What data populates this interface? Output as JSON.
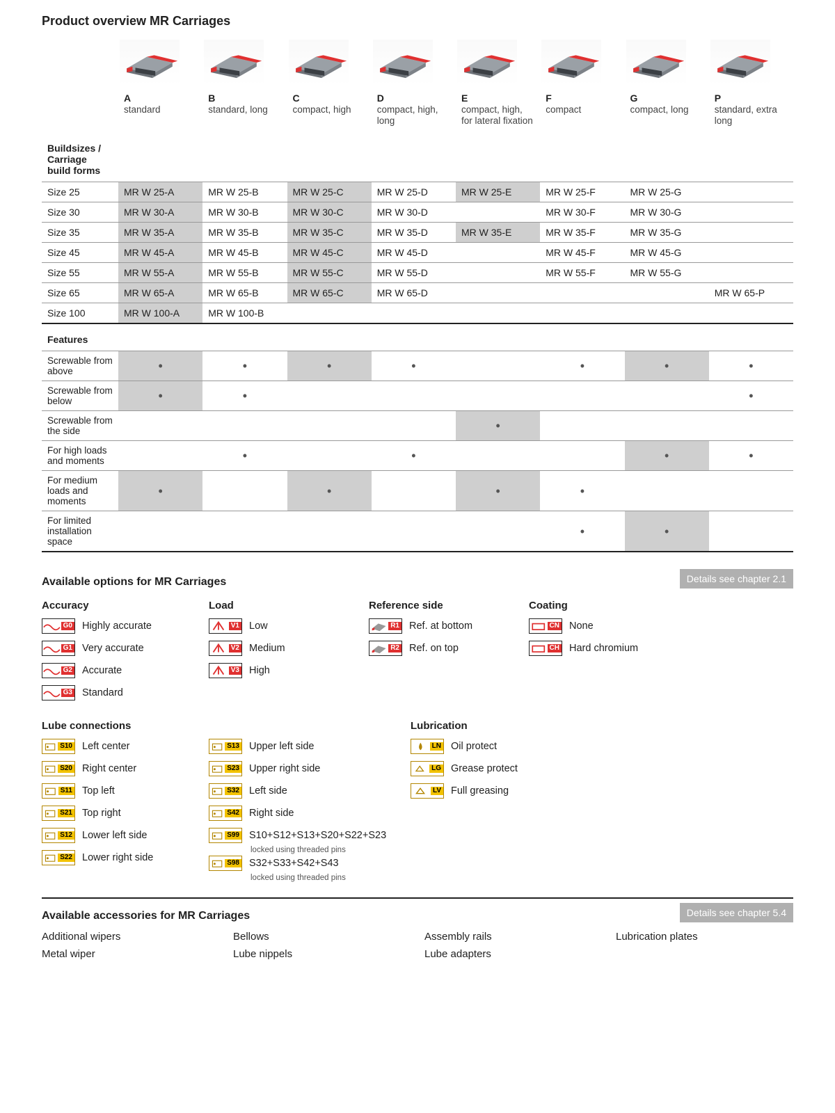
{
  "title": "Product overview MR Carriages",
  "columns": [
    {
      "letter": "A",
      "desc": "standard"
    },
    {
      "letter": "B",
      "desc": "standard, long"
    },
    {
      "letter": "C",
      "desc": "compact, high"
    },
    {
      "letter": "D",
      "desc": "compact, high, long"
    },
    {
      "letter": "E",
      "desc": "compact, high, for lateral fixation"
    },
    {
      "letter": "F",
      "desc": "compact"
    },
    {
      "letter": "G",
      "desc": "compact, long"
    },
    {
      "letter": "P",
      "desc": "standard, extra long"
    }
  ],
  "group1_header": "Buildsizes / Carriage build forms",
  "sizes": [
    {
      "label": "Size 25",
      "cells": [
        "MR W 25-A",
        "MR W 25-B",
        "MR W 25-C",
        "MR W 25-D",
        "MR W 25-E",
        "MR W 25-F",
        "MR W 25-G",
        ""
      ],
      "shaded": [
        0,
        2,
        4
      ]
    },
    {
      "label": "Size 30",
      "cells": [
        "MR W 30-A",
        "MR W 30-B",
        "MR W 30-C",
        "MR W 30-D",
        "",
        "MR W 30-F",
        "MR W 30-G",
        ""
      ],
      "shaded": [
        0,
        2
      ]
    },
    {
      "label": "Size 35",
      "cells": [
        "MR W 35-A",
        "MR W 35-B",
        "MR W 35-C",
        "MR W 35-D",
        "MR W 35-E",
        "MR W 35-F",
        "MR W 35-G",
        ""
      ],
      "shaded": [
        0,
        2,
        4
      ]
    },
    {
      "label": "Size 45",
      "cells": [
        "MR W 45-A",
        "MR W 45-B",
        "MR W 45-C",
        "MR W 45-D",
        "",
        "MR W 45-F",
        "MR W 45-G",
        ""
      ],
      "shaded": [
        0,
        2
      ]
    },
    {
      "label": "Size 55",
      "cells": [
        "MR W 55-A",
        "MR W 55-B",
        "MR W 55-C",
        "MR W 55-D",
        "",
        "MR W 55-F",
        "MR W 55-G",
        ""
      ],
      "shaded": [
        0,
        2
      ]
    },
    {
      "label": "Size 65",
      "cells": [
        "MR W 65-A",
        "MR W 65-B",
        "MR W 65-C",
        "MR W 65-D",
        "",
        "",
        "",
        "MR W 65-P"
      ],
      "shaded": [
        0,
        2
      ]
    },
    {
      "label": "Size 100",
      "cells": [
        "MR W 100-A",
        "MR W 100-B",
        "",
        "",
        "",
        "",
        "",
        ""
      ],
      "shaded": [
        0
      ]
    }
  ],
  "features_header": "Features",
  "features": [
    {
      "label": "Screwable from above",
      "dots": [
        true,
        true,
        true,
        true,
        false,
        true,
        true,
        true
      ],
      "shaded": [
        0,
        2,
        6
      ]
    },
    {
      "label": "Screwable from below",
      "dots": [
        true,
        true,
        false,
        false,
        false,
        false,
        false,
        true
      ],
      "shaded": [
        0
      ]
    },
    {
      "label": "Screwable from the side",
      "dots": [
        false,
        false,
        false,
        false,
        true,
        false,
        false,
        false
      ],
      "shaded": [
        4
      ]
    },
    {
      "label": "For high loads and moments",
      "dots": [
        false,
        true,
        false,
        true,
        false,
        false,
        true,
        true
      ],
      "shaded": [
        6
      ]
    },
    {
      "label": "For medium loads and moments",
      "dots": [
        true,
        false,
        true,
        false,
        true,
        true,
        false,
        false
      ],
      "shaded": [
        0,
        2,
        4
      ]
    },
    {
      "label": "For limited installation space",
      "dots": [
        false,
        false,
        false,
        false,
        false,
        true,
        true,
        false
      ],
      "shaded": [
        6
      ]
    }
  ],
  "options_title": "Available options for MR Carriages",
  "details_ch21": "Details see chapter 2.1",
  "details_ch54": "Details see chapter 5.4",
  "opt_groups": {
    "accuracy": {
      "title": "Accuracy",
      "items": [
        {
          "code": "G0",
          "label": "Highly accurate"
        },
        {
          "code": "G1",
          "label": "Very accurate"
        },
        {
          "code": "G2",
          "label": "Accurate"
        },
        {
          "code": "G3",
          "label": "Standard"
        }
      ]
    },
    "load": {
      "title": "Load",
      "items": [
        {
          "code": "V1",
          "label": "Low"
        },
        {
          "code": "V2",
          "label": "Medium"
        },
        {
          "code": "V3",
          "label": "High"
        }
      ]
    },
    "refside": {
      "title": "Reference side",
      "items": [
        {
          "code": "R1",
          "label": "Ref. at bottom"
        },
        {
          "code": "R2",
          "label": "Ref. on top"
        }
      ]
    },
    "coating": {
      "title": "Coating",
      "items": [
        {
          "code": "CN",
          "label": "None"
        },
        {
          "code": "CH",
          "label": "Hard chromium"
        }
      ]
    }
  },
  "lube": {
    "conn_title": "Lube connections",
    "left": [
      {
        "code": "S10",
        "label": "Left center"
      },
      {
        "code": "S20",
        "label": "Right center"
      },
      {
        "code": "S11",
        "label": "Top left"
      },
      {
        "code": "S21",
        "label": "Top right"
      },
      {
        "code": "S12",
        "label": "Lower left side"
      },
      {
        "code": "S22",
        "label": "Lower right side"
      }
    ],
    "right": [
      {
        "code": "S13",
        "label": "Upper left side"
      },
      {
        "code": "S23",
        "label": "Upper right side"
      },
      {
        "code": "S32",
        "label": "Left side"
      },
      {
        "code": "S42",
        "label": "Right side"
      },
      {
        "code": "S99",
        "label": "S10+S12+S13+S20+S22+S23",
        "sub": "locked using threaded pins"
      },
      {
        "code": "S98",
        "label": "S32+S33+S42+S43",
        "sub": "locked using threaded pins"
      }
    ],
    "lub_title": "Lubrication",
    "lub": [
      {
        "code": "LN",
        "label": "Oil protect"
      },
      {
        "code": "LG",
        "label": "Grease protect"
      },
      {
        "code": "LV",
        "label": "Full greasing"
      }
    ]
  },
  "acc_title": "Available accessories for MR Carriages",
  "accessories": [
    "Additional wipers",
    "Bellows",
    "Assembly rails",
    "Lubrication plates",
    "Metal wiper",
    "Lube nippels",
    "Lube adapters",
    ""
  ],
  "colors": {
    "red": "#e03030",
    "yellow": "#f2c200",
    "shade": "#cfcfcf",
    "rule": "#222"
  }
}
